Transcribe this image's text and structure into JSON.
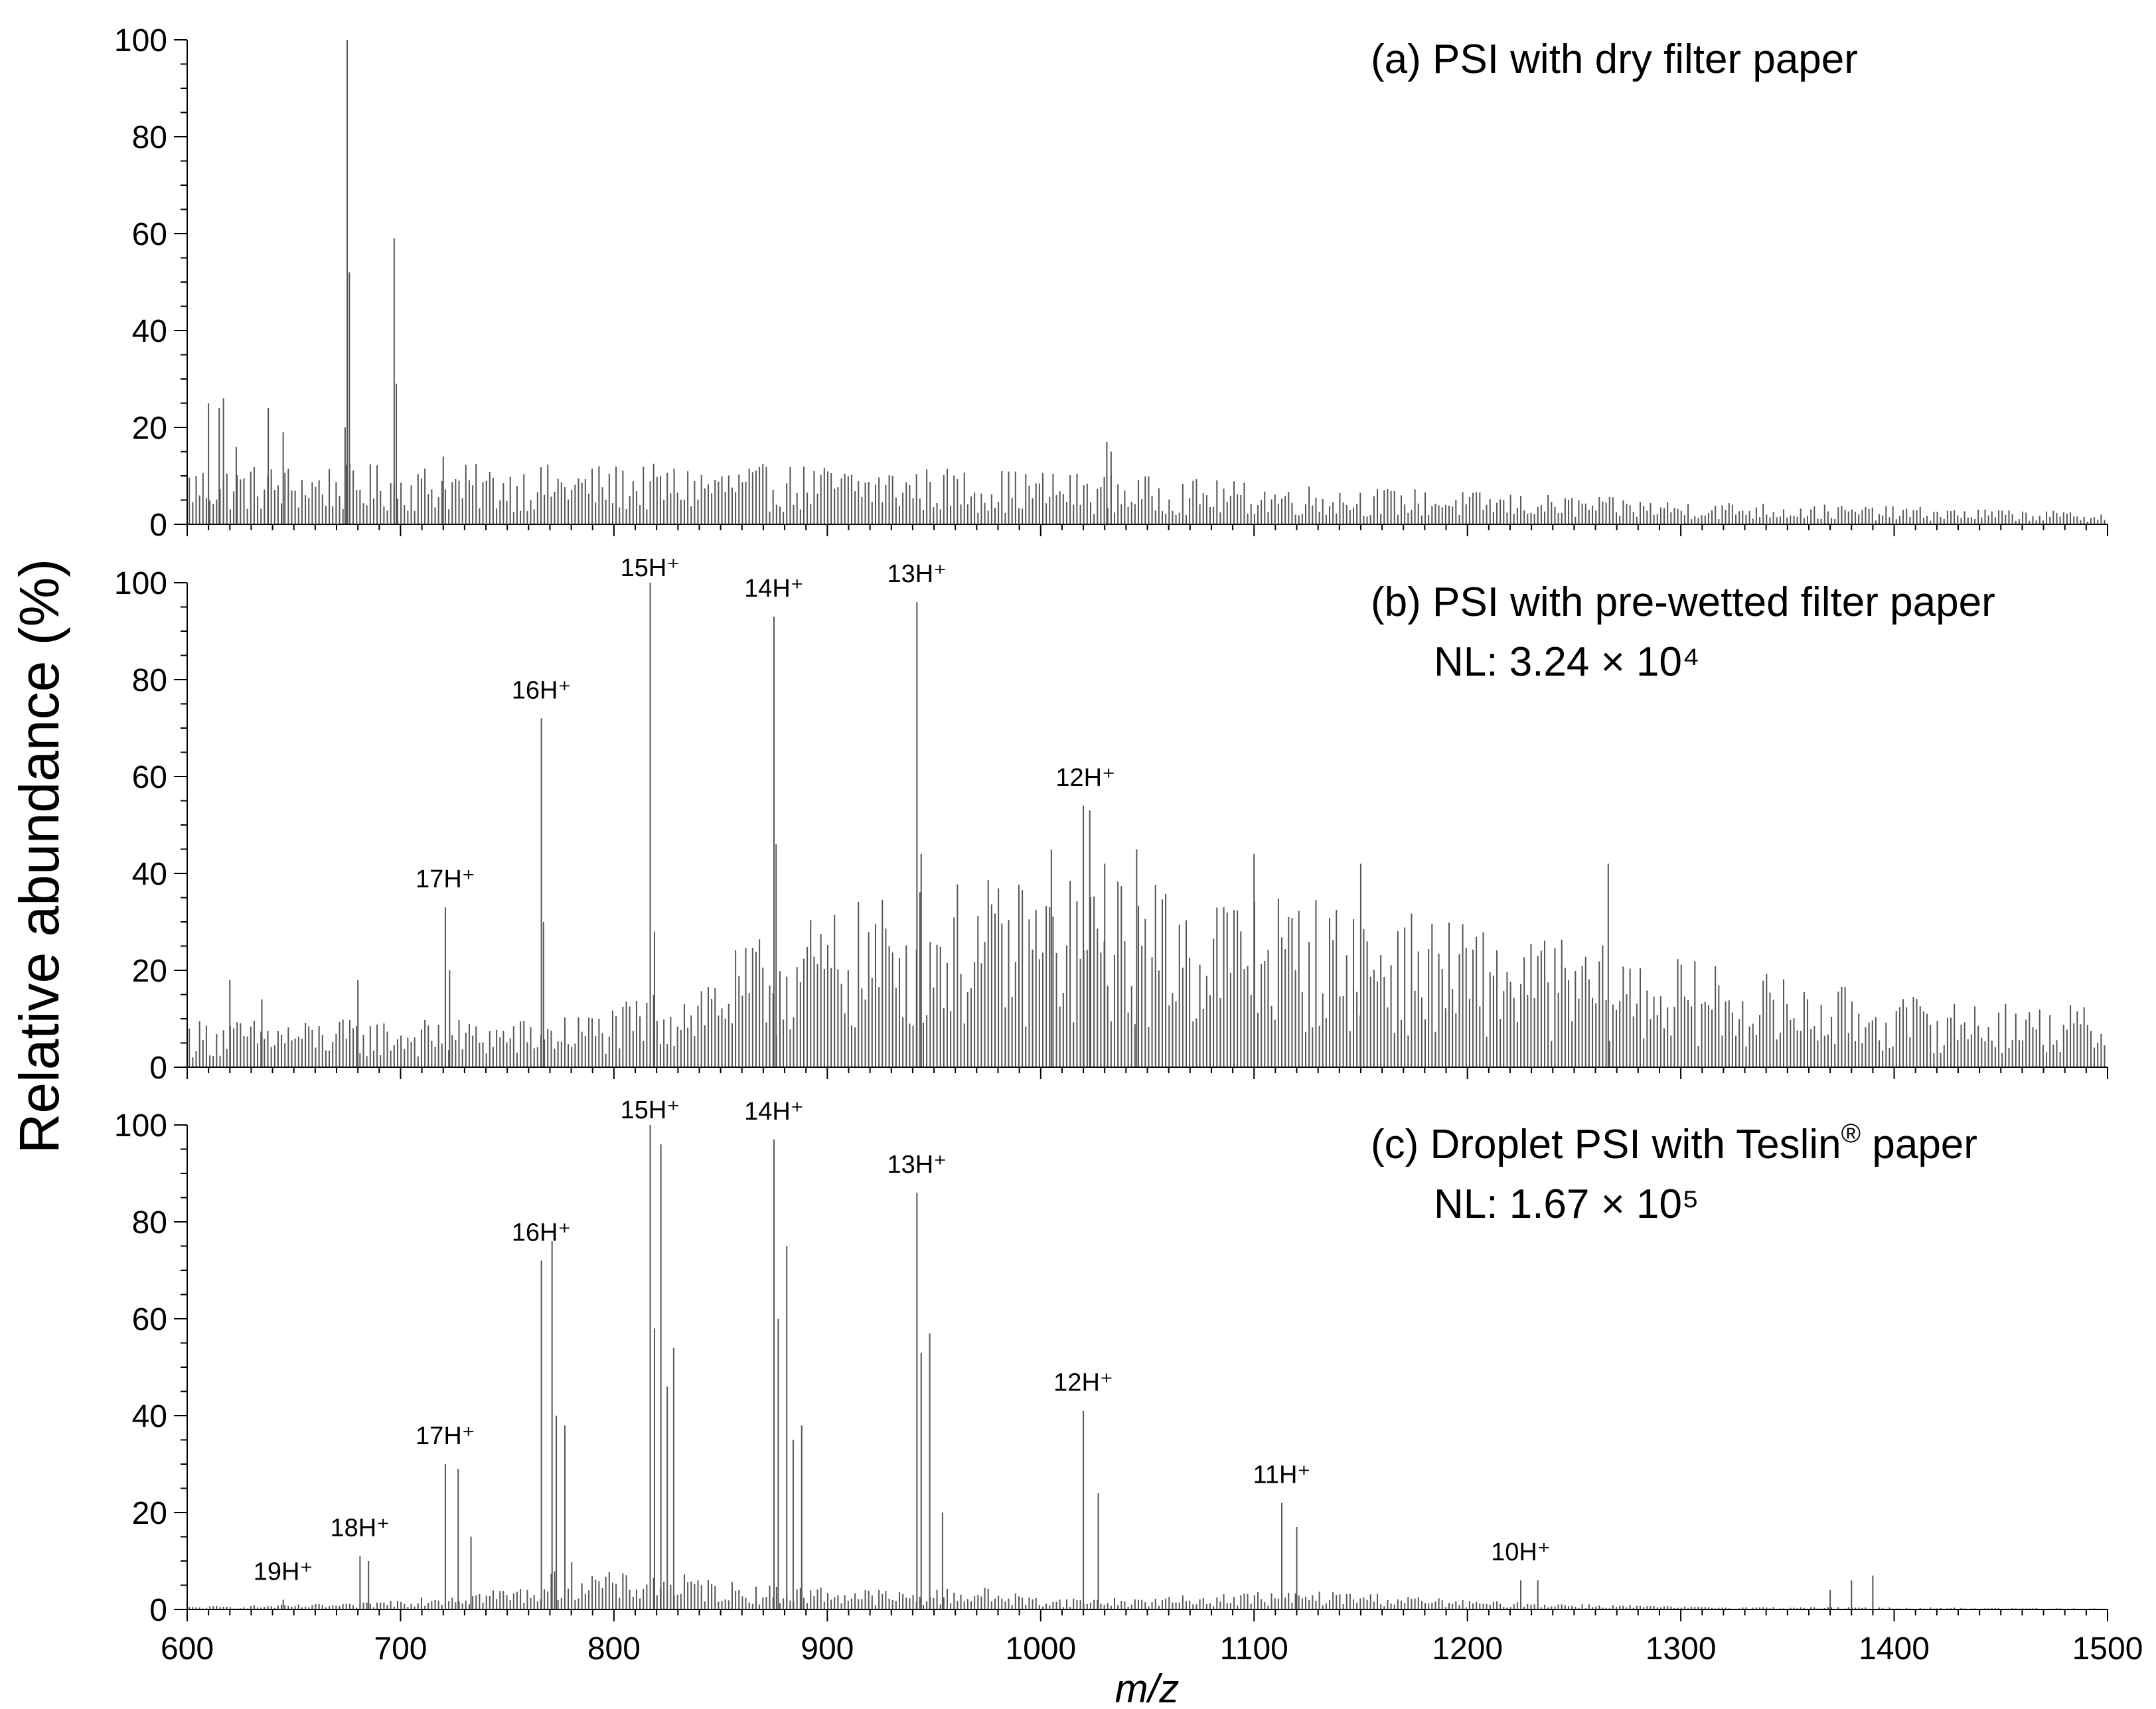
{
  "figure": {
    "ylabel": "Relative abundance (%)",
    "xlabel": "m/z"
  },
  "chart_data": [
    {
      "type": "bar",
      "title": "(a) PSI with dry filter paper",
      "xlabel": "m/z",
      "ylabel": "Relative abundance (%)",
      "xlim": [
        600,
        1500
      ],
      "ylim": [
        0,
        100
      ],
      "yticks": [
        0,
        20,
        40,
        60,
        80,
        100
      ],
      "peaks": [
        {
          "x": 610,
          "y": 25
        },
        {
          "x": 615,
          "y": 24
        },
        {
          "x": 617,
          "y": 26
        },
        {
          "x": 623,
          "y": 16
        },
        {
          "x": 638,
          "y": 24
        },
        {
          "x": 645,
          "y": 19
        },
        {
          "x": 675,
          "y": 100
        },
        {
          "x": 676,
          "y": 52
        },
        {
          "x": 674,
          "y": 20
        },
        {
          "x": 697,
          "y": 59
        },
        {
          "x": 698,
          "y": 29
        },
        {
          "x": 720,
          "y": 14
        },
        {
          "x": 1031,
          "y": 17
        },
        {
          "x": 1033,
          "y": 15
        }
      ],
      "baseline": [
        [
          600,
          10
        ],
        [
          700,
          10
        ],
        [
          900,
          10
        ],
        [
          1000,
          9
        ],
        [
          1100,
          7
        ],
        [
          1300,
          4
        ],
        [
          1500,
          2
        ]
      ],
      "annotations": []
    },
    {
      "type": "bar",
      "title": "(b) PSI with pre-wetted filter paper",
      "subtitle": "NL: 3.24 × 10⁴",
      "xlabel": "m/z",
      "ylabel": "Relative abundance (%)",
      "xlim": [
        600,
        1500
      ],
      "ylim": [
        0,
        100
      ],
      "yticks": [
        0,
        20,
        40,
        60,
        80,
        100
      ],
      "peaks": [
        {
          "x": 620,
          "y": 18
        },
        {
          "x": 635,
          "y": 14
        },
        {
          "x": 680,
          "y": 18
        },
        {
          "x": 721,
          "y": 33
        },
        {
          "x": 723,
          "y": 20
        },
        {
          "x": 766,
          "y": 72
        },
        {
          "x": 767,
          "y": 30
        },
        {
          "x": 817,
          "y": 100
        },
        {
          "x": 819,
          "y": 28
        },
        {
          "x": 875,
          "y": 93
        },
        {
          "x": 876,
          "y": 46
        },
        {
          "x": 942,
          "y": 96
        },
        {
          "x": 944,
          "y": 44
        },
        {
          "x": 1020,
          "y": 54
        },
        {
          "x": 1023,
          "y": 53
        },
        {
          "x": 1005,
          "y": 45
        },
        {
          "x": 1030,
          "y": 42
        },
        {
          "x": 1045,
          "y": 45
        },
        {
          "x": 1100,
          "y": 44
        },
        {
          "x": 1150,
          "y": 42
        },
        {
          "x": 1266,
          "y": 42
        }
      ],
      "baseline": [
        [
          600,
          8
        ],
        [
          700,
          8
        ],
        [
          760,
          8
        ],
        [
          800,
          10
        ],
        [
          840,
          16
        ],
        [
          880,
          24
        ],
        [
          940,
          30
        ],
        [
          1000,
          32
        ],
        [
          1100,
          30
        ],
        [
          1200,
          24
        ],
        [
          1300,
          18
        ],
        [
          1400,
          12
        ],
        [
          1500,
          10
        ]
      ],
      "annotations": [
        {
          "text": "17H⁺",
          "x": 721
        },
        {
          "text": "16H⁺",
          "x": 766
        },
        {
          "text": "15H⁺",
          "x": 817
        },
        {
          "text": "14H⁺",
          "x": 875
        },
        {
          "text": "13H⁺",
          "x": 942
        },
        {
          "text": "12H⁺",
          "x": 1021
        }
      ]
    },
    {
      "type": "bar",
      "title": "(c) Droplet PSI with Teslin",
      "title_superscript": "®",
      "title_suffix": " paper",
      "subtitle": "NL: 1.67 × 10⁵",
      "xlabel": "m/z",
      "ylabel": "Relative abundance (%)",
      "xlim": [
        600,
        1500
      ],
      "ylim": [
        0,
        100
      ],
      "yticks": [
        0,
        20,
        40,
        60,
        80,
        100
      ],
      "xticks": [
        600,
        700,
        800,
        900,
        1000,
        1100,
        1200,
        1300,
        1400,
        1500
      ],
      "peaks": [
        {
          "x": 645,
          "y": 2
        },
        {
          "x": 681,
          "y": 11
        },
        {
          "x": 685,
          "y": 10
        },
        {
          "x": 721,
          "y": 30
        },
        {
          "x": 727,
          "y": 29
        },
        {
          "x": 733,
          "y": 15
        },
        {
          "x": 766,
          "y": 72
        },
        {
          "x": 771,
          "y": 76
        },
        {
          "x": 773,
          "y": 40
        },
        {
          "x": 777,
          "y": 38
        },
        {
          "x": 817,
          "y": 100
        },
        {
          "x": 819,
          "y": 58
        },
        {
          "x": 822,
          "y": 96
        },
        {
          "x": 825,
          "y": 46
        },
        {
          "x": 828,
          "y": 54
        },
        {
          "x": 875,
          "y": 97
        },
        {
          "x": 877,
          "y": 60
        },
        {
          "x": 881,
          "y": 75
        },
        {
          "x": 884,
          "y": 35
        },
        {
          "x": 888,
          "y": 38
        },
        {
          "x": 942,
          "y": 86
        },
        {
          "x": 944,
          "y": 53
        },
        {
          "x": 948,
          "y": 57
        },
        {
          "x": 954,
          "y": 20
        },
        {
          "x": 1020,
          "y": 41
        },
        {
          "x": 1027,
          "y": 24
        },
        {
          "x": 1113,
          "y": 22
        },
        {
          "x": 1120,
          "y": 17
        },
        {
          "x": 1225,
          "y": 6
        },
        {
          "x": 1233,
          "y": 6
        },
        {
          "x": 1370,
          "y": 4
        },
        {
          "x": 1380,
          "y": 6
        },
        {
          "x": 1390,
          "y": 7
        }
      ],
      "baseline": [
        [
          600,
          0.5
        ],
        [
          680,
          1
        ],
        [
          700,
          2
        ],
        [
          720,
          3
        ],
        [
          760,
          4
        ],
        [
          780,
          8
        ],
        [
          800,
          6
        ],
        [
          830,
          6
        ],
        [
          870,
          4
        ],
        [
          900,
          4
        ],
        [
          940,
          3
        ],
        [
          970,
          4
        ],
        [
          1000,
          2
        ],
        [
          1050,
          2
        ],
        [
          1100,
          3
        ],
        [
          1150,
          3
        ],
        [
          1200,
          1.5
        ],
        [
          1300,
          0.5
        ],
        [
          1500,
          0.2
        ]
      ],
      "annotations": [
        {
          "text": "19H⁺",
          "x": 645
        },
        {
          "text": "18H⁺",
          "x": 681
        },
        {
          "text": "17H⁺",
          "x": 721
        },
        {
          "text": "16H⁺",
          "x": 766
        },
        {
          "text": "15H⁺",
          "x": 817
        },
        {
          "text": "14H⁺",
          "x": 875
        },
        {
          "text": "13H⁺",
          "x": 942
        },
        {
          "text": "12H⁺",
          "x": 1020
        },
        {
          "text": "11H⁺",
          "x": 1113
        },
        {
          "text": "10H⁺",
          "x": 1225
        }
      ]
    }
  ]
}
